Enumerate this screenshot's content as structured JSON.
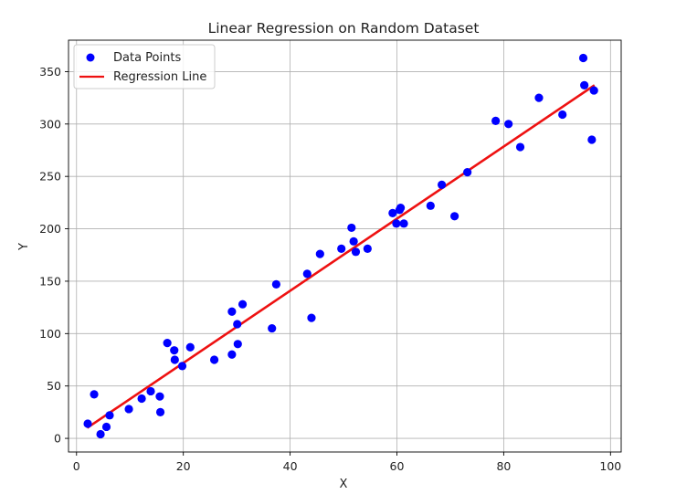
{
  "chart_data": {
    "type": "scatter",
    "title": "Linear Regression on Random Dataset",
    "xlabel": "X",
    "ylabel": "Y",
    "xlim": [
      -1.5,
      102
    ],
    "ylim": [
      -13,
      380
    ],
    "xticks": [
      0,
      20,
      40,
      60,
      80,
      100
    ],
    "yticks": [
      0,
      50,
      100,
      150,
      200,
      250,
      300,
      350
    ],
    "grid": true,
    "legend_position": "top-left",
    "colors": {
      "points": "#0000ff",
      "line": "#ee1111"
    },
    "series": [
      {
        "name": "Data Points",
        "type": "scatter",
        "points": [
          [
            2.1,
            14
          ],
          [
            3.3,
            42
          ],
          [
            4.5,
            4
          ],
          [
            5.6,
            11
          ],
          [
            6.2,
            22
          ],
          [
            9.8,
            28
          ],
          [
            12.2,
            38
          ],
          [
            13.9,
            45
          ],
          [
            15.6,
            40
          ],
          [
            15.7,
            25
          ],
          [
            17.0,
            91
          ],
          [
            18.3,
            84
          ],
          [
            18.4,
            75
          ],
          [
            19.8,
            69
          ],
          [
            21.3,
            87
          ],
          [
            25.8,
            75
          ],
          [
            29.1,
            121
          ],
          [
            29.1,
            80
          ],
          [
            30.1,
            109
          ],
          [
            30.2,
            90
          ],
          [
            31.1,
            128
          ],
          [
            36.6,
            105
          ],
          [
            37.4,
            147
          ],
          [
            43.2,
            157
          ],
          [
            44.0,
            115
          ],
          [
            45.6,
            176
          ],
          [
            49.6,
            181
          ],
          [
            51.5,
            201
          ],
          [
            51.9,
            188
          ],
          [
            52.3,
            178
          ],
          [
            54.5,
            181
          ],
          [
            59.2,
            215
          ],
          [
            59.9,
            205
          ],
          [
            60.5,
            218
          ],
          [
            60.7,
            220
          ],
          [
            61.3,
            205
          ],
          [
            66.3,
            222
          ],
          [
            68.4,
            242
          ],
          [
            70.8,
            212
          ],
          [
            73.2,
            254
          ],
          [
            78.5,
            303
          ],
          [
            80.9,
            300
          ],
          [
            83.1,
            278
          ],
          [
            86.6,
            325
          ],
          [
            91.0,
            309
          ],
          [
            94.9,
            363
          ],
          [
            95.1,
            337
          ],
          [
            96.5,
            285
          ],
          [
            96.9,
            332
          ]
        ]
      },
      {
        "name": "Regression Line",
        "type": "line",
        "points": [
          [
            2.0,
            10
          ],
          [
            97.0,
            337
          ]
        ]
      }
    ]
  }
}
